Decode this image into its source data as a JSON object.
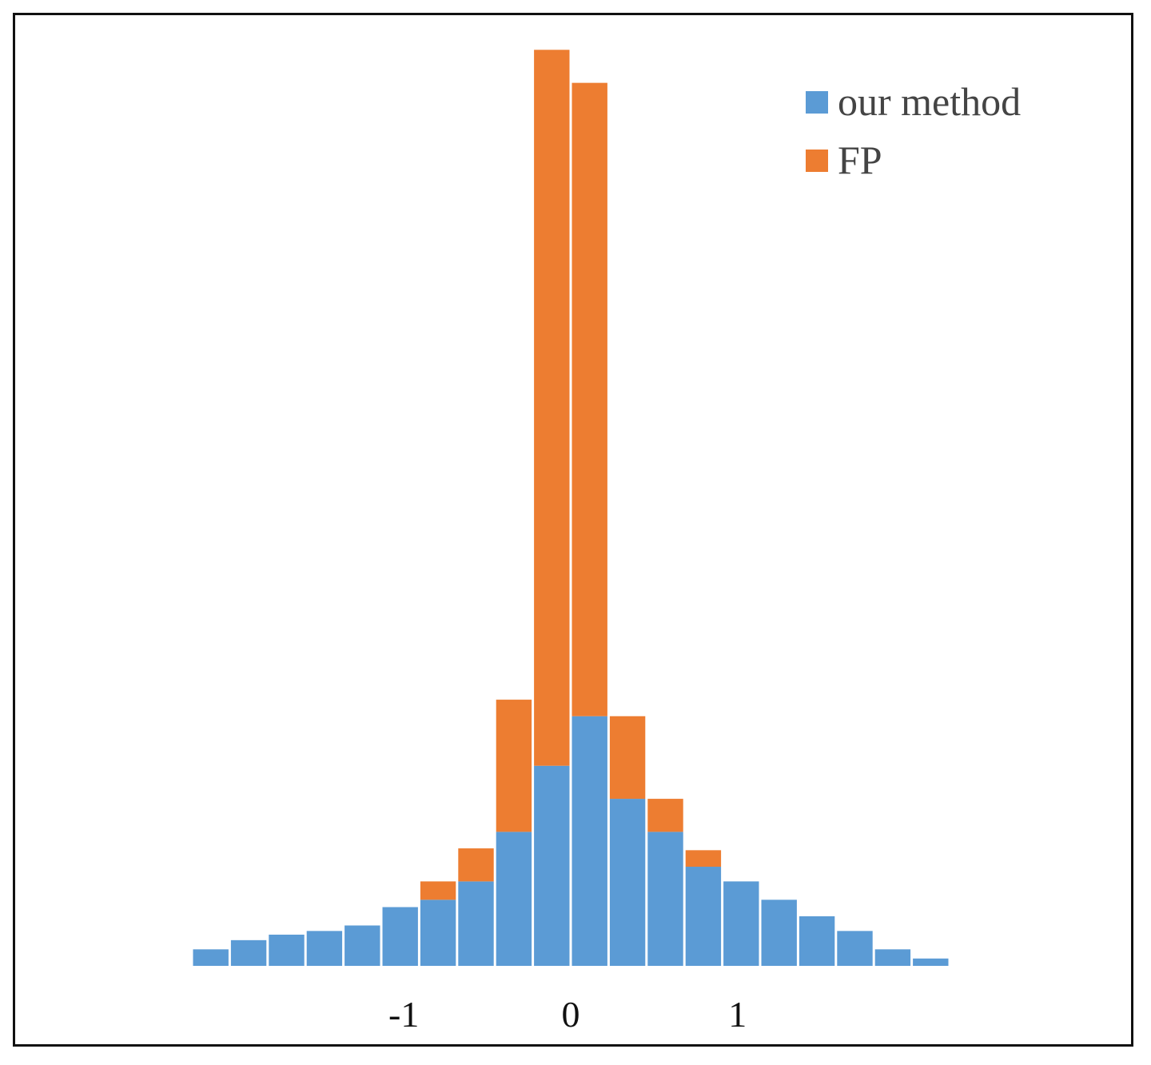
{
  "chart_data": {
    "type": "bar",
    "stacked": true,
    "title": "",
    "xlabel": "",
    "ylabel": "",
    "x_tick_labels": [
      {
        "value": -1,
        "label": "-1"
      },
      {
        "value": 0,
        "label": "0"
      },
      {
        "value": 1,
        "label": "1"
      }
    ],
    "bin_count": 20,
    "bin_width": 0.227,
    "x_range": [
      -2.27,
      2.27
    ],
    "ylim": [
      0,
      1.0
    ],
    "series": [
      {
        "name": "our method",
        "color": "#5b9bd5",
        "values": [
          0.018,
          0.028,
          0.034,
          0.038,
          0.044,
          0.064,
          0.072,
          0.092,
          0.146,
          0.218,
          0.272,
          0.182,
          0.146,
          0.108,
          0.092,
          0.072,
          0.054,
          0.038,
          0.018,
          0.008
        ]
      },
      {
        "name": "FP",
        "color": "#ed7d31",
        "values": [
          0,
          0,
          0,
          0,
          0,
          0,
          0.02,
          0.036,
          0.144,
          0.78,
          0.69,
          0.09,
          0.036,
          0.018,
          0,
          0,
          0,
          0,
          0,
          0
        ]
      }
    ],
    "grid": false,
    "legend": {
      "position": "top-right"
    }
  }
}
